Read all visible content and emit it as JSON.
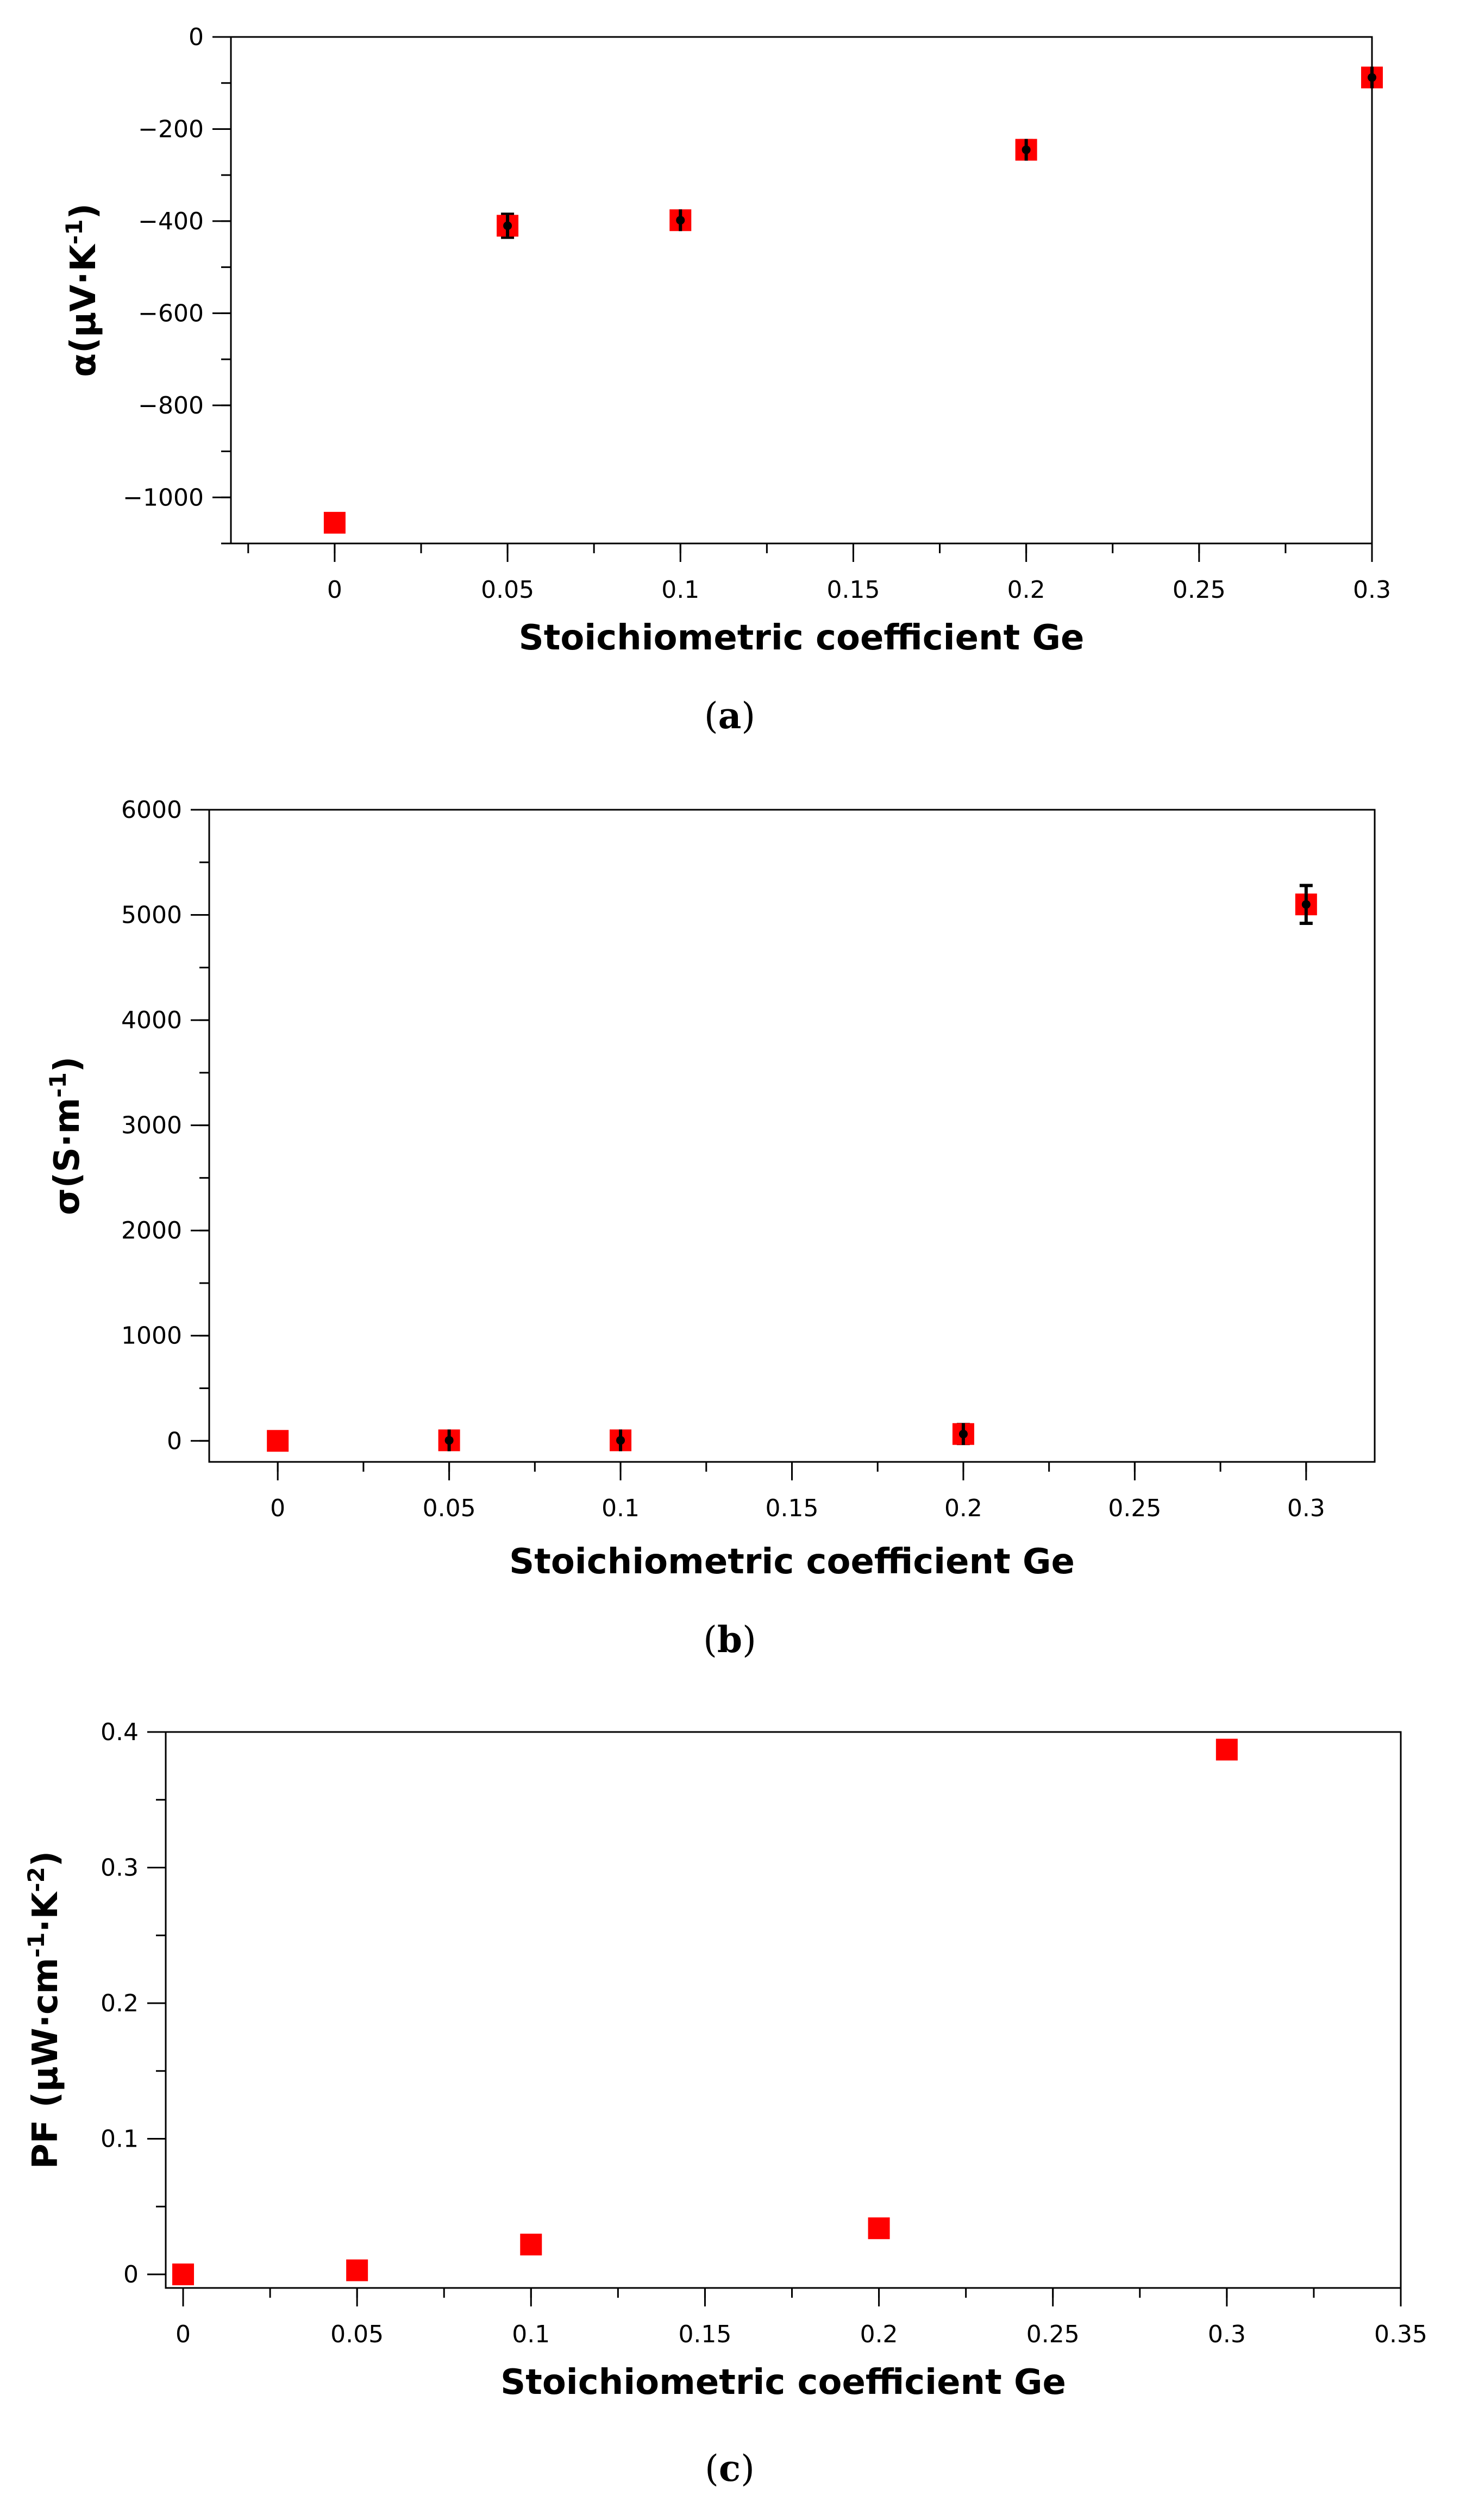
{
  "chart_data": [
    {
      "type": "scatter",
      "caption_letter": "a",
      "title": "",
      "xlabel": "Stoichiometric coefficient Ge",
      "ylabel": "α(μV·K",
      "ylabel_sup": "-1",
      "ylabel_end": ")",
      "xlim": [
        -0.03,
        0.3
      ],
      "ylim": [
        -1100,
        0
      ],
      "x_ticks": [
        0,
        0.05,
        0.1,
        0.15,
        0.2,
        0.25,
        0.3
      ],
      "x_tick_labels": [
        "0",
        "0.05",
        "0.1",
        "0.15",
        "0.2",
        "0.25",
        "0.3"
      ],
      "y_ticks": [
        -1000,
        -800,
        -600,
        -400,
        -200,
        0
      ],
      "y_tick_labels": [
        "−1000",
        "−800",
        "−600",
        "−400",
        "−200",
        "0"
      ],
      "x_minor_step": 0.025,
      "y_minor_step": 100,
      "points": [
        {
          "x": 0,
          "y": -1055,
          "err": 0
        },
        {
          "x": 0.05,
          "y": -410,
          "err": 25
        },
        {
          "x": 0.1,
          "y": -398,
          "err": 18
        },
        {
          "x": 0.2,
          "y": -245,
          "err": 20
        },
        {
          "x": 0.3,
          "y": -88,
          "err": 18
        }
      ],
      "marker_color": "#ff0000",
      "errorbar_color": "#000000",
      "grid": false
    },
    {
      "type": "scatter",
      "caption_letter": "b",
      "title": "",
      "xlabel": "Stoichiometric coefficient Ge",
      "ylabel": "σ(S·m",
      "ylabel_sup": "-1",
      "ylabel_end": ")",
      "xlim": [
        -0.02,
        0.32
      ],
      "ylim": [
        -200,
        6000
      ],
      "x_ticks": [
        0,
        0.05,
        0.1,
        0.15,
        0.2,
        0.25,
        0.3
      ],
      "x_tick_labels": [
        "0",
        "0.05",
        "0.1",
        "0.15",
        "0.2",
        "0.25",
        "0.3"
      ],
      "y_ticks": [
        0,
        1000,
        2000,
        3000,
        4000,
        5000,
        6000
      ],
      "y_tick_labels": [
        "0",
        "1000",
        "2000",
        "3000",
        "4000",
        "5000",
        "6000"
      ],
      "x_minor_step": 0.025,
      "y_minor_step": 500,
      "points": [
        {
          "x": 0,
          "y": 0,
          "err": 0
        },
        {
          "x": 0.05,
          "y": 5,
          "err": 80
        },
        {
          "x": 0.1,
          "y": 5,
          "err": 80
        },
        {
          "x": 0.2,
          "y": 65,
          "err": 90
        },
        {
          "x": 0.3,
          "y": 5100,
          "err": 180
        }
      ],
      "marker_color": "#ff0000",
      "errorbar_color": "#000000",
      "grid": false
    },
    {
      "type": "scatter",
      "caption_letter": "c",
      "title": "",
      "xlabel": "Stoichiometric coefficient Ge",
      "ylabel": "PF (μW·cm",
      "ylabel_sup": "-1",
      "ylabel_mid": "·K",
      "ylabel_sup2": "-2",
      "ylabel_end": ")",
      "xlim": [
        -0.005,
        0.35
      ],
      "ylim": [
        -0.01,
        0.4
      ],
      "x_ticks": [
        0,
        0.05,
        0.1,
        0.15,
        0.2,
        0.25,
        0.3,
        0.35
      ],
      "x_tick_labels": [
        "0",
        "0.05",
        "0.1",
        "0.15",
        "0.2",
        "0.25",
        "0.3",
        "0.35"
      ],
      "y_ticks": [
        0,
        0.1,
        0.2,
        0.3,
        0.4
      ],
      "y_tick_labels": [
        "0",
        "0.1",
        "0.2",
        "0.3",
        "0.4"
      ],
      "x_minor_step": 0.025,
      "y_minor_step": 0.05,
      "points": [
        {
          "x": 0,
          "y": 0,
          "err": 0
        },
        {
          "x": 0.05,
          "y": 0.003,
          "err": 0
        },
        {
          "x": 0.1,
          "y": 0.022,
          "err": 0
        },
        {
          "x": 0.2,
          "y": 0.034,
          "err": 0
        },
        {
          "x": 0.3,
          "y": 0.387,
          "err": 0
        }
      ],
      "marker_color": "#ff0000",
      "errorbar_color": "#000000",
      "grid": false
    }
  ]
}
